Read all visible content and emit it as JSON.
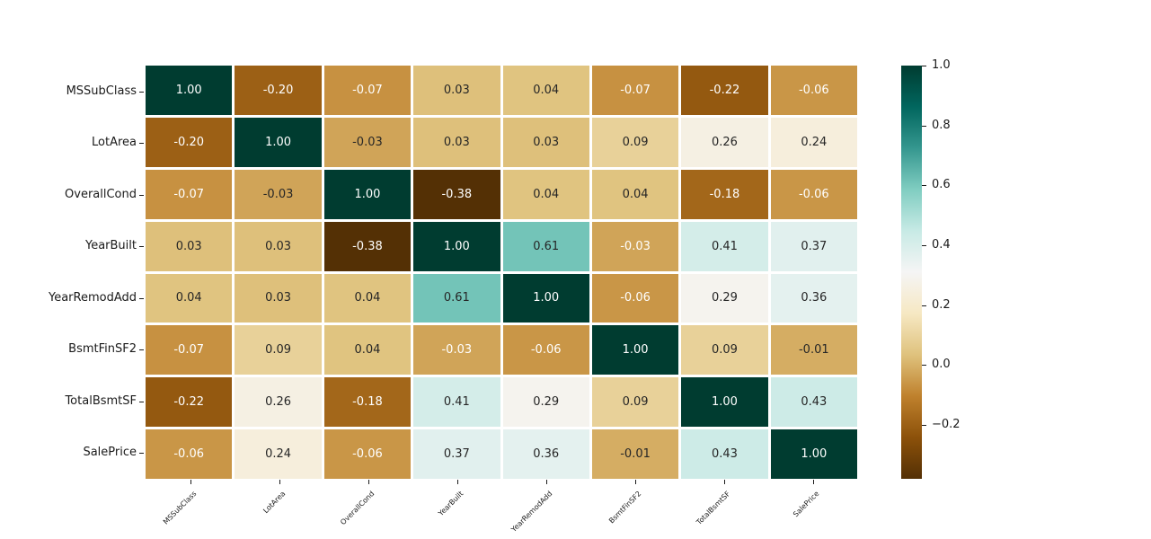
{
  "chart_data": {
    "type": "heatmap",
    "title": "",
    "xlabel": "",
    "ylabel": "",
    "labels": [
      "MSSubClass",
      "LotArea",
      "OverallCond",
      "YearBuilt",
      "YearRemodAdd",
      "BsmtFinSF2",
      "TotalBsmtSF",
      "SalePrice"
    ],
    "matrix": [
      [
        1.0,
        -0.2,
        -0.07,
        0.03,
        0.04,
        -0.07,
        -0.22,
        -0.06
      ],
      [
        -0.2,
        1.0,
        -0.03,
        0.03,
        0.03,
        0.09,
        0.26,
        0.24
      ],
      [
        -0.07,
        -0.03,
        1.0,
        -0.38,
        0.04,
        0.04,
        -0.18,
        -0.06
      ],
      [
        0.03,
        0.03,
        -0.38,
        1.0,
        0.61,
        -0.03,
        0.41,
        0.37
      ],
      [
        0.04,
        0.03,
        0.04,
        0.61,
        1.0,
        -0.06,
        0.29,
        0.36
      ],
      [
        -0.07,
        0.09,
        0.04,
        -0.03,
        -0.06,
        1.0,
        0.09,
        -0.01
      ],
      [
        -0.22,
        0.26,
        -0.18,
        0.41,
        0.29,
        0.09,
        1.0,
        0.43
      ],
      [
        -0.06,
        0.24,
        -0.06,
        0.37,
        0.36,
        -0.01,
        0.43,
        1.0
      ]
    ],
    "value_format_decimals": 2,
    "text_colors": [
      [
        "w",
        "w",
        "w",
        "k",
        "k",
        "w",
        "w",
        "w"
      ],
      [
        "w",
        "w",
        "k",
        "k",
        "k",
        "k",
        "k",
        "k"
      ],
      [
        "w",
        "k",
        "w",
        "w",
        "k",
        "k",
        "w",
        "w"
      ],
      [
        "k",
        "k",
        "w",
        "w",
        "k",
        "w",
        "k",
        "k"
      ],
      [
        "k",
        "k",
        "k",
        "k",
        "w",
        "w",
        "k",
        "k"
      ],
      [
        "w",
        "k",
        "k",
        "w",
        "w",
        "w",
        "k",
        "k"
      ],
      [
        "w",
        "k",
        "w",
        "k",
        "k",
        "k",
        "w",
        "k"
      ],
      [
        "w",
        "k",
        "w",
        "k",
        "k",
        "k",
        "k",
        "w"
      ]
    ],
    "annotation_color_dark": "#262626",
    "annotation_color_light": "#ffffff",
    "vmin": -0.38,
    "vmax": 1.0,
    "colormap": {
      "name": "BrBG",
      "stops": [
        "#543005",
        "#8c510a",
        "#bf812d",
        "#dfc27d",
        "#f6e8c3",
        "#f5f5f5",
        "#c7eae5",
        "#80cdc1",
        "#35978f",
        "#01665e",
        "#003c30"
      ]
    },
    "colorbar": {
      "position": "right",
      "ticks": [
        {
          "label": "1.0",
          "value": 1.0
        },
        {
          "label": "0.8",
          "value": 0.8
        },
        {
          "label": "0.6",
          "value": 0.6
        },
        {
          "label": "0.4",
          "value": 0.4
        },
        {
          "label": "0.2",
          "value": 0.2
        },
        {
          "label": "0.0",
          "value": 0.0
        },
        {
          "label": "−0.2",
          "value": -0.2
        }
      ]
    },
    "grid_line_color": "#ffffff",
    "background_color": "#ffffff"
  }
}
